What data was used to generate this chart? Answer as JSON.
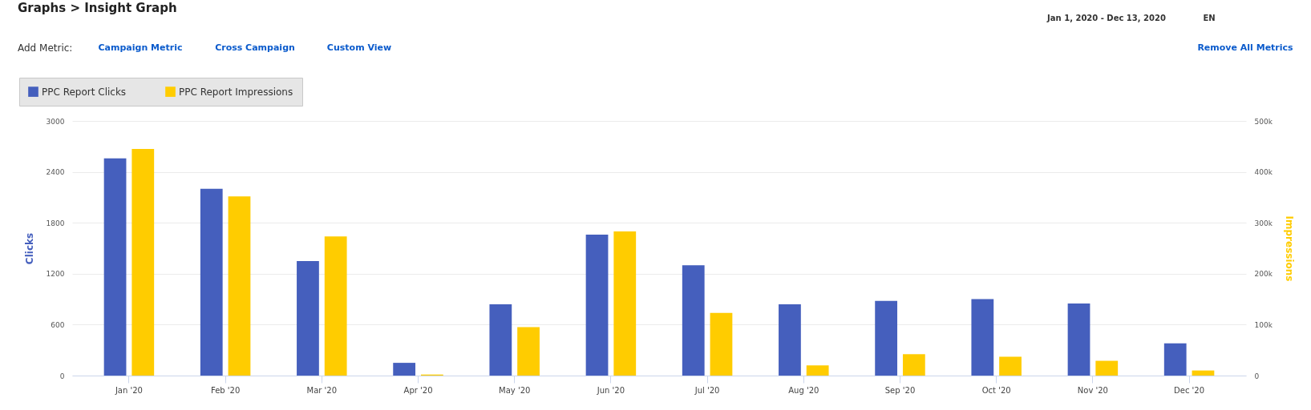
{
  "chart_data": {
    "type": "bar",
    "title": "Graphs > Insight Graph",
    "ylabel": "Clicks",
    "y2label": "Impressions",
    "categories": [
      "Jan '20",
      "Feb '20",
      "Mar '20",
      "Apr '20",
      "May '20",
      "Jun '20",
      "Jul '20",
      "Aug '20",
      "Sep '20",
      "Oct '20",
      "Nov '20",
      "Dec '20"
    ],
    "series": [
      {
        "name": "PPC Report Clicks",
        "color": "#455fbd",
        "axis": "y",
        "values": [
          2560,
          2200,
          1350,
          150,
          840,
          1660,
          1300,
          840,
          880,
          900,
          850,
          380
        ]
      },
      {
        "name": "PPC Report Impressions",
        "color": "#ffcc00",
        "axis": "y2",
        "values": [
          445000,
          352000,
          273000,
          2000,
          95000,
          283000,
          123000,
          20000,
          42000,
          37000,
          29000,
          10000
        ]
      }
    ],
    "ylim": [
      0,
      3000
    ],
    "yticks": [
      0,
      600,
      1200,
      1800,
      2400,
      3000
    ],
    "y2lim": [
      0,
      500000
    ],
    "y2ticks": [
      0,
      {
        "value": 100000,
        "label": "100k"
      },
      {
        "value": 200000,
        "label": "200k"
      },
      {
        "value": 300000,
        "label": "300k"
      },
      {
        "value": 400000,
        "label": "400k"
      },
      {
        "value": 500000,
        "label": "500k"
      }
    ],
    "grid": "y",
    "legend": "top left",
    "annotations": [
      "Add Metric:",
      "Campaign Metric",
      "Cross Campaign",
      "Custom View",
      "Jan 1, 2020 - Dec 13, 2020",
      "EN",
      "Remove All Metrics"
    ]
  }
}
